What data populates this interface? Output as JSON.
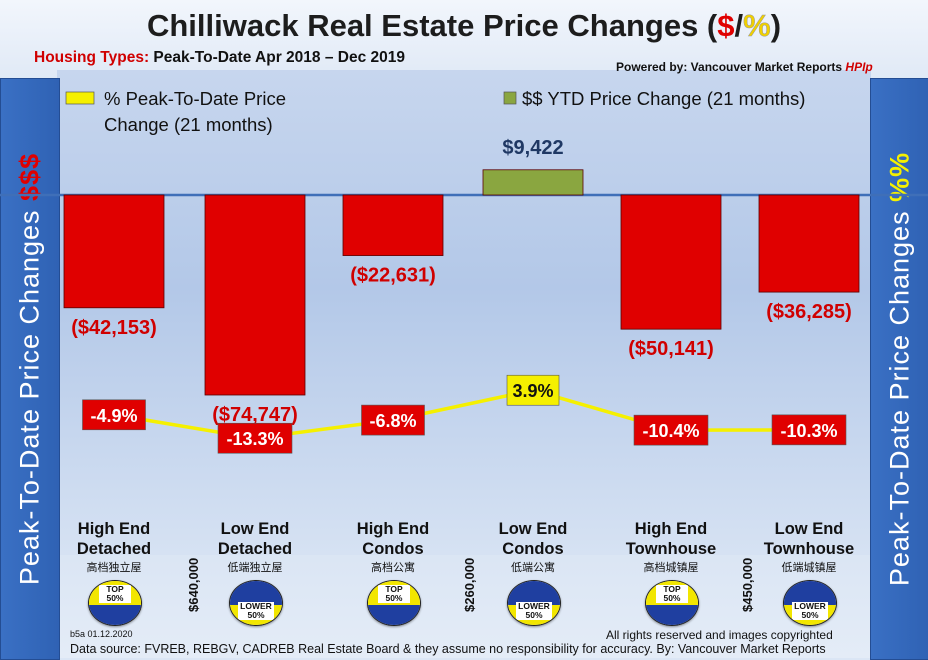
{
  "header": {
    "title_prefix": "Chilliwack Real Estate Price Changes (",
    "title_dollar": "$",
    "title_slash": "/",
    "title_pct": "%",
    "title_suffix": ")",
    "subtitle_label": "Housing Types:",
    "subtitle_range": "Peak-To-Date Apr 2018 – Dec 2019",
    "powered_by": "Powered by: Vancouver Market Reports ",
    "powered_brand": "HPIp"
  },
  "sidebars": {
    "left_text": "Peak-To-Date Price Changes ",
    "left_symbol": "$$$",
    "right_text": "Peak-To-Date  Price  Changes ",
    "right_symbol": "%%"
  },
  "legend": {
    "pct_label_line1": "% Peak-To-Date Price",
    "pct_label_line2": "Change (21 months)",
    "dollar_label": "$$ YTD Price Change (21 months)"
  },
  "chart_data": {
    "type": "bar",
    "categories": [
      "High End Detached",
      "Low End Detached",
      "High End Condos",
      "Low End Condos",
      "High End Townhouse",
      "Low End Townhouse"
    ],
    "categories_line1": [
      "High End",
      "Low End",
      "High End",
      "Low End",
      "High End",
      "Low End"
    ],
    "categories_line2": [
      "Detached",
      "Detached",
      "Condos",
      "Condos",
      "Townhouse",
      "Townhouse"
    ],
    "categories_cn": [
      "高档独立屋",
      "低端独立屋",
      "高档公寓",
      "低端公寓",
      "高档城镇屋",
      "低端城镇屋"
    ],
    "series": [
      {
        "name": "$$ YTD Price Change (21 months)",
        "type": "bar",
        "values": [
          -42153,
          -74747,
          -22631,
          9422,
          -50141,
          -36285
        ],
        "labels": [
          "($42,153)",
          "($74,747)",
          "($22,631)",
          "$9,422",
          "($50,141)",
          "($36,285)"
        ]
      },
      {
        "name": "% Peak-To-Date Price Change (21 months)",
        "type": "line",
        "values": [
          -4.9,
          -13.3,
          -6.8,
          3.9,
          -10.4,
          -10.3
        ],
        "labels": [
          "-4.9%",
          "-13.3%",
          "-6.8%",
          "3.9%",
          "-10.4%",
          "-10.3%"
        ]
      }
    ],
    "price_thresholds": [
      "$640,000",
      "$260,000",
      "$450,000"
    ],
    "tier_badges": [
      {
        "line1": "TOP",
        "line2": "50%"
      },
      {
        "line1": "LOWER",
        "line2": "50%"
      },
      {
        "line1": "TOP",
        "line2": "50%"
      },
      {
        "line1": "LOWER",
        "line2": "50%"
      },
      {
        "line1": "TOP",
        "line2": "50%"
      },
      {
        "line1": "LOWER",
        "line2": "50%"
      }
    ]
  },
  "footer": {
    "code": "b5a 01.12.2020",
    "rights": "All rights reserved and  images copyrighted",
    "source": "Data source: FVREB, REBGV, CADREB Real Estate Board & they assume no responsibility for accuracy. By: Vancouver Market Reports"
  },
  "colors": {
    "bar_negative": "#e00000",
    "bar_positive": "#8aa640",
    "line": "#f5f000",
    "label_red": "#d00000",
    "label_blue": "#1f3864",
    "sidebar_blue": "#3a70c4",
    "badge_yellow": "#f2e600",
    "badge_blue": "#1f3fa0"
  }
}
